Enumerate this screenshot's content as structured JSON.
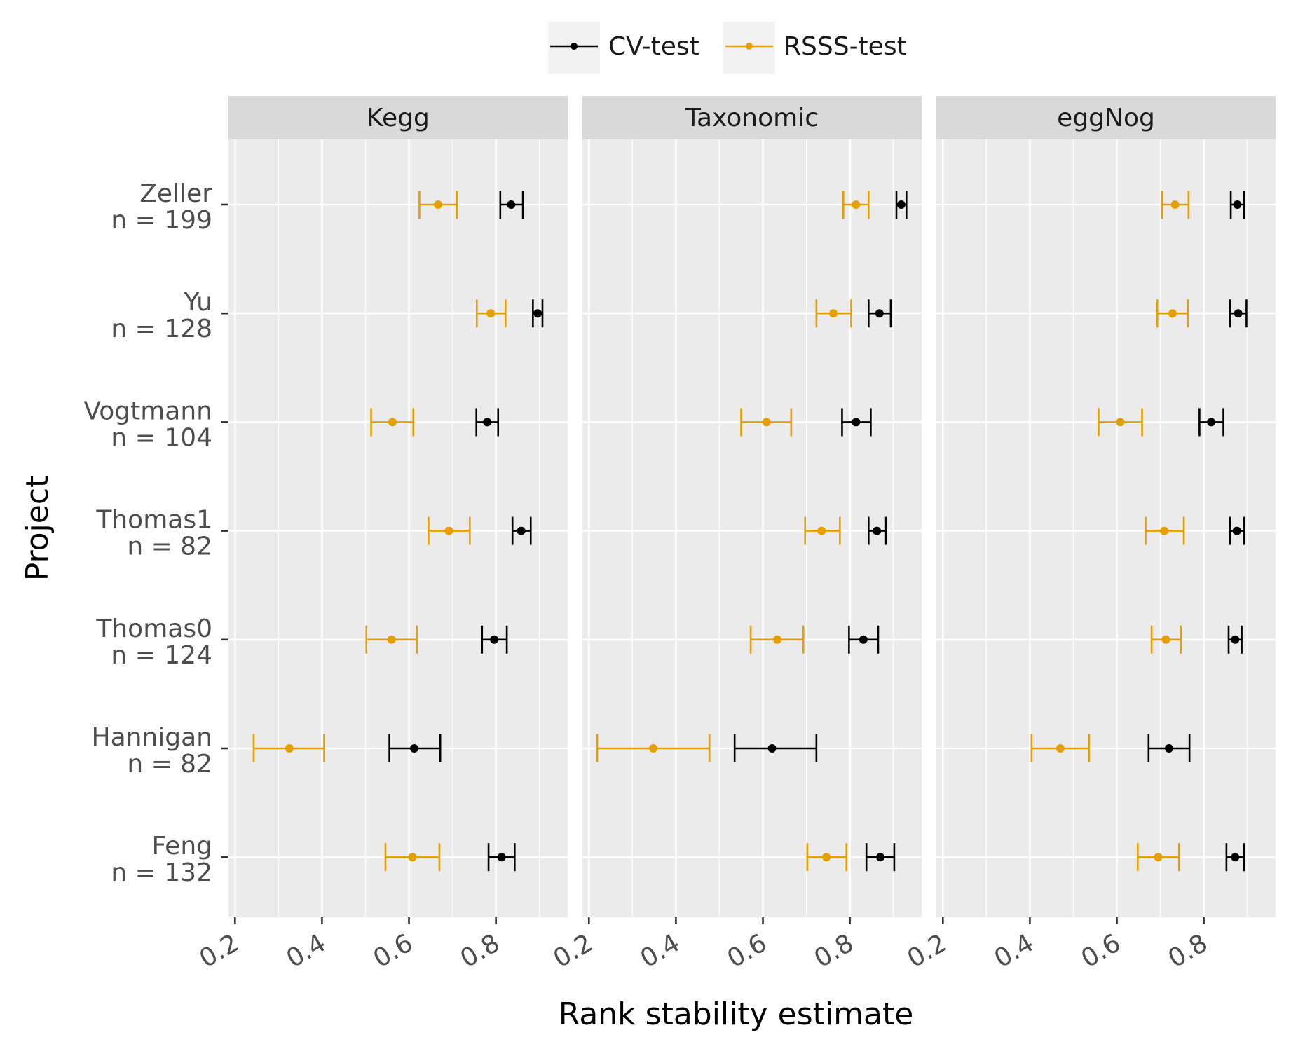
{
  "chart_data": {
    "type": "errorbar",
    "xlabel": "Rank stability estimate",
    "ylabel": "Project",
    "xlim": [
      0.185,
      0.965
    ],
    "x_ticks": [
      "0.2",
      "0.4",
      "0.6",
      "0.8"
    ],
    "grid": true,
    "legend": {
      "position": "top",
      "entries": [
        {
          "name": "CV-test",
          "color": "#000000"
        },
        {
          "name": "RSSS-test",
          "color": "#E69F00"
        }
      ]
    },
    "projects": [
      {
        "name": "Zeller",
        "n": "n = 199"
      },
      {
        "name": "Yu",
        "n": "n = 128"
      },
      {
        "name": "Vogtmann",
        "n": "n = 104"
      },
      {
        "name": "Thomas1",
        "n": "n = 82"
      },
      {
        "name": "Thomas0",
        "n": "n = 124"
      },
      {
        "name": "Hannigan",
        "n": "n = 82"
      },
      {
        "name": "Feng",
        "n": "n = 132"
      }
    ],
    "panels": [
      {
        "title": "Kegg",
        "series": [
          {
            "name": "CV-test",
            "points": [
              {
                "project": "Zeller",
                "estimate": 0.835,
                "low": 0.81,
                "high": 0.862
              },
              {
                "project": "Yu",
                "estimate": 0.896,
                "low": 0.885,
                "high": 0.907
              },
              {
                "project": "Vogtmann",
                "estimate": 0.78,
                "low": 0.755,
                "high": 0.805
              },
              {
                "project": "Thomas1",
                "estimate": 0.858,
                "low": 0.838,
                "high": 0.88
              },
              {
                "project": "Thomas0",
                "estimate": 0.796,
                "low": 0.768,
                "high": 0.825
              },
              {
                "project": "Hannigan",
                "estimate": 0.612,
                "low": 0.555,
                "high": 0.672
              },
              {
                "project": "Feng",
                "estimate": 0.813,
                "low": 0.783,
                "high": 0.843
              }
            ]
          },
          {
            "name": "RSSS-test",
            "points": [
              {
                "project": "Zeller",
                "estimate": 0.667,
                "low": 0.624,
                "high": 0.71
              },
              {
                "project": "Yu",
                "estimate": 0.788,
                "low": 0.756,
                "high": 0.822
              },
              {
                "project": "Vogtmann",
                "estimate": 0.562,
                "low": 0.513,
                "high": 0.61
              },
              {
                "project": "Thomas1",
                "estimate": 0.692,
                "low": 0.645,
                "high": 0.74
              },
              {
                "project": "Thomas0",
                "estimate": 0.56,
                "low": 0.502,
                "high": 0.618
              },
              {
                "project": "Hannigan",
                "estimate": 0.325,
                "low": 0.243,
                "high": 0.405
              },
              {
                "project": "Feng",
                "estimate": 0.608,
                "low": 0.546,
                "high": 0.67
              }
            ]
          }
        ]
      },
      {
        "title": "Taxonomic",
        "series": [
          {
            "name": "CV-test",
            "points": [
              {
                "project": "Zeller",
                "estimate": 0.918,
                "low": 0.907,
                "high": 0.93
              },
              {
                "project": "Yu",
                "estimate": 0.868,
                "low": 0.843,
                "high": 0.894
              },
              {
                "project": "Vogtmann",
                "estimate": 0.814,
                "low": 0.782,
                "high": 0.848
              },
              {
                "project": "Thomas1",
                "estimate": 0.862,
                "low": 0.843,
                "high": 0.883
              },
              {
                "project": "Thomas0",
                "estimate": 0.831,
                "low": 0.798,
                "high": 0.865
              },
              {
                "project": "Hannigan",
                "estimate": 0.621,
                "low": 0.535,
                "high": 0.723
              },
              {
                "project": "Feng",
                "estimate": 0.87,
                "low": 0.838,
                "high": 0.902
              }
            ]
          },
          {
            "name": "RSSS-test",
            "points": [
              {
                "project": "Zeller",
                "estimate": 0.814,
                "low": 0.785,
                "high": 0.843
              },
              {
                "project": "Yu",
                "estimate": 0.762,
                "low": 0.723,
                "high": 0.803
              },
              {
                "project": "Vogtmann",
                "estimate": 0.608,
                "low": 0.55,
                "high": 0.665
              },
              {
                "project": "Thomas1",
                "estimate": 0.735,
                "low": 0.697,
                "high": 0.777
              },
              {
                "project": "Thomas0",
                "estimate": 0.633,
                "low": 0.572,
                "high": 0.693
              },
              {
                "project": "Hannigan",
                "estimate": 0.348,
                "low": 0.219,
                "high": 0.477
              },
              {
                "project": "Feng",
                "estimate": 0.746,
                "low": 0.702,
                "high": 0.792
              }
            ]
          }
        ]
      },
      {
        "title": "eggNog",
        "series": [
          {
            "name": "CV-test",
            "points": [
              {
                "project": "Zeller",
                "estimate": 0.877,
                "low": 0.862,
                "high": 0.892
              },
              {
                "project": "Yu",
                "estimate": 0.879,
                "low": 0.86,
                "high": 0.898
              },
              {
                "project": "Vogtmann",
                "estimate": 0.817,
                "low": 0.79,
                "high": 0.845
              },
              {
                "project": "Thomas1",
                "estimate": 0.876,
                "low": 0.86,
                "high": 0.893
              },
              {
                "project": "Thomas0",
                "estimate": 0.872,
                "low": 0.857,
                "high": 0.887
              },
              {
                "project": "Hannigan",
                "estimate": 0.72,
                "low": 0.673,
                "high": 0.767
              },
              {
                "project": "Feng",
                "estimate": 0.872,
                "low": 0.852,
                "high": 0.892
              }
            ]
          },
          {
            "name": "RSSS-test",
            "points": [
              {
                "project": "Zeller",
                "estimate": 0.734,
                "low": 0.704,
                "high": 0.765
              },
              {
                "project": "Yu",
                "estimate": 0.728,
                "low": 0.693,
                "high": 0.763
              },
              {
                "project": "Vogtmann",
                "estimate": 0.608,
                "low": 0.558,
                "high": 0.658
              },
              {
                "project": "Thomas1",
                "estimate": 0.709,
                "low": 0.666,
                "high": 0.754
              },
              {
                "project": "Thomas0",
                "estimate": 0.713,
                "low": 0.68,
                "high": 0.747
              },
              {
                "project": "Hannigan",
                "estimate": 0.47,
                "low": 0.404,
                "high": 0.536
              },
              {
                "project": "Feng",
                "estimate": 0.695,
                "low": 0.648,
                "high": 0.743
              }
            ]
          }
        ]
      }
    ]
  }
}
